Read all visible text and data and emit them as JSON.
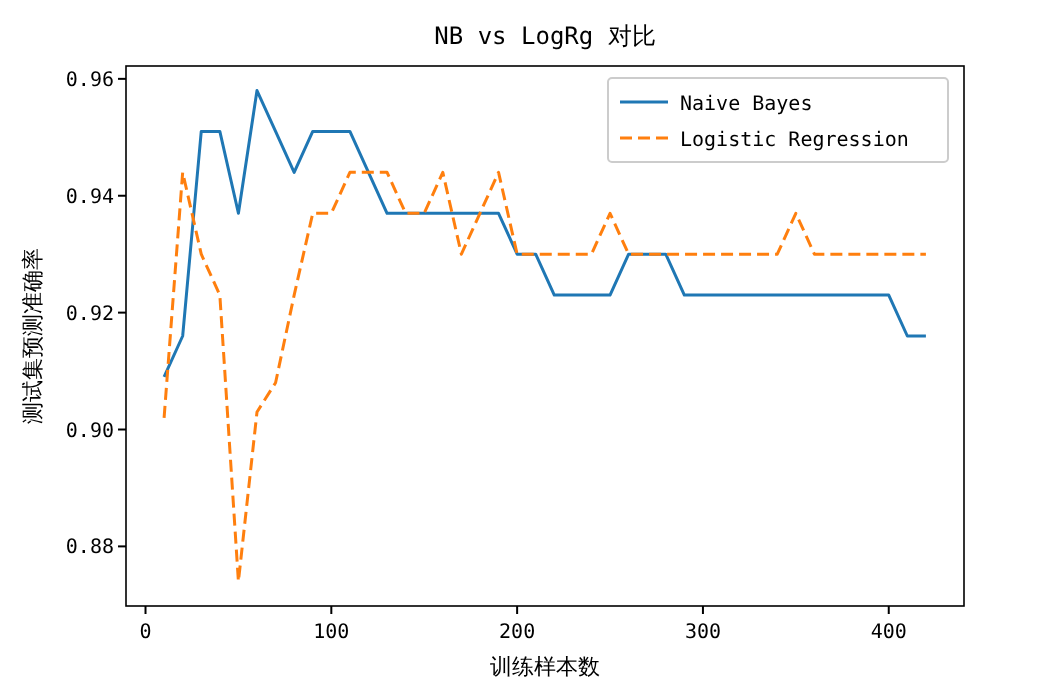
{
  "chart_data": {
    "type": "line",
    "title": "NB vs LogRg 对比",
    "xlabel": "训练样本数",
    "ylabel": "测试集预测准确率",
    "x": [
      10,
      20,
      30,
      40,
      50,
      60,
      70,
      80,
      90,
      100,
      110,
      120,
      130,
      140,
      150,
      160,
      170,
      180,
      190,
      200,
      210,
      220,
      230,
      240,
      250,
      260,
      270,
      280,
      290,
      300,
      310,
      320,
      330,
      340,
      350,
      360,
      370,
      380,
      390,
      400,
      410,
      420
    ],
    "series": [
      {
        "name": "Naive Bayes",
        "color": "#1f77b4",
        "line_style": "solid",
        "values": [
          0.909,
          0.916,
          0.951,
          0.951,
          0.937,
          0.958,
          0.951,
          0.944,
          0.951,
          0.951,
          0.951,
          0.944,
          0.937,
          0.937,
          0.937,
          0.937,
          0.937,
          0.937,
          0.937,
          0.93,
          0.93,
          0.923,
          0.923,
          0.923,
          0.923,
          0.93,
          0.93,
          0.93,
          0.923,
          0.923,
          0.923,
          0.923,
          0.923,
          0.923,
          0.923,
          0.923,
          0.923,
          0.923,
          0.923,
          0.923,
          0.916,
          0.916
        ]
      },
      {
        "name": "Logistic Regression",
        "color": "#ff7f0e",
        "line_style": "dashed",
        "values": [
          0.902,
          0.944,
          0.93,
          0.923,
          0.874,
          0.903,
          0.908,
          0.923,
          0.937,
          0.937,
          0.944,
          0.944,
          0.944,
          0.937,
          0.937,
          0.944,
          0.93,
          0.937,
          0.944,
          0.93,
          0.93,
          0.93,
          0.93,
          0.93,
          0.937,
          0.93,
          0.93,
          0.93,
          0.93,
          0.93,
          0.93,
          0.93,
          0.93,
          0.93,
          0.937,
          0.93,
          0.93,
          0.93,
          0.93,
          0.93,
          0.93,
          0.93
        ]
      }
    ],
    "xlim": [
      -10.5,
      440.5
    ],
    "xticks": [
      0,
      100,
      200,
      300,
      400
    ],
    "ylim": [
      0.8698,
      0.9622
    ],
    "yticks": [
      {
        "value": 0.88,
        "label": "0.88"
      },
      {
        "value": 0.9,
        "label": "0.90"
      },
      {
        "value": 0.92,
        "label": "0.92"
      },
      {
        "value": 0.94,
        "label": "0.94"
      },
      {
        "value": 0.96,
        "label": "0.96"
      }
    ],
    "legend": "top right",
    "grid": false,
    "marker": "none"
  }
}
